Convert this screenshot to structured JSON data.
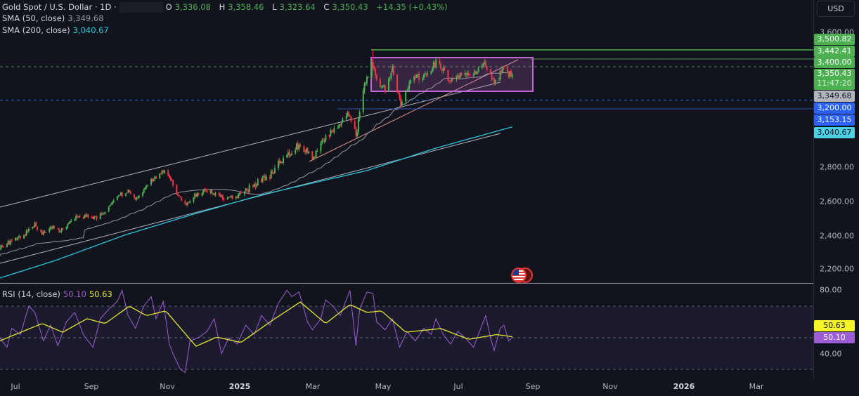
{
  "header": {
    "symbol": "Gold Spot / U.S. Dollar · 1D ·",
    "o_label": "O",
    "o": "3,336.08",
    "h_label": "H",
    "h": "3,358.46",
    "l_label": "L",
    "l": "3,323.64",
    "c_label": "C",
    "c": "3,350.43",
    "change": "+14.35 (+0.43%)"
  },
  "indicators": [
    {
      "label": "SMA (50, close)",
      "value": "3,349.68"
    },
    {
      "label": "SMA (200, close)",
      "value": "3,040.67"
    }
  ],
  "rsi_legend": {
    "label": "RSI (14, close)",
    "rsi": "50.10",
    "ma": "50.63"
  },
  "currency_button": "USD",
  "price_axis": {
    "ticks": [
      "3,600.00",
      "2,800.00",
      "2,600.00",
      "2,400.00",
      "2,200.00"
    ]
  },
  "price_tags": [
    {
      "value": "3,500.82",
      "kind": "horizontal-line",
      "color": "#4caf50"
    },
    {
      "value": "3,442.41",
      "kind": "horizontal-line",
      "color": "#4caf50"
    },
    {
      "value": "3,400.00",
      "kind": "horizontal-line",
      "color": "#4caf50"
    },
    {
      "value": "3,350.43",
      "countdown": "11:47:20",
      "kind": "last-price",
      "color": "#4caf50"
    },
    {
      "value": "3,349.68",
      "kind": "sma50",
      "color": "#b2b5be"
    },
    {
      "value": "3,200.00",
      "kind": "horizontal-line",
      "color": "#2962ff"
    },
    {
      "value": "3,153.15",
      "kind": "horizontal-line",
      "color": "#2962ff"
    },
    {
      "value": "3,040.67",
      "kind": "sma200",
      "color": "#4dd0e1"
    }
  ],
  "rsi_axis": {
    "ticks": [
      "80.00",
      "40.00"
    ],
    "tags": [
      {
        "value": "50.63",
        "color": "#f5f52a"
      },
      {
        "value": "50.10",
        "color": "#9c5dd6"
      }
    ]
  },
  "time_axis": [
    {
      "label": "Jul",
      "bold": false
    },
    {
      "label": "Sep",
      "bold": false
    },
    {
      "label": "Nov",
      "bold": false
    },
    {
      "label": "2025",
      "bold": true
    },
    {
      "label": "Mar",
      "bold": false
    },
    {
      "label": "May",
      "bold": false
    },
    {
      "label": "Jul",
      "bold": false
    },
    {
      "label": "Sep",
      "bold": false
    },
    {
      "label": "Nov",
      "bold": false
    },
    {
      "label": "2026",
      "bold": true
    },
    {
      "label": "Mar",
      "bold": false
    }
  ],
  "colors": {
    "up": "#4caf50",
    "down": "#f23645",
    "sma50": "#9598a1",
    "sma200": "#26c6da",
    "rsi": "#9c5dd6",
    "rsi_ma": "#e4e82a",
    "range_box": "#c266d6",
    "background": "#11141c"
  },
  "event_icon": "us-flag-icon",
  "chart_data": {
    "type": "candlestick",
    "interval": "1D",
    "last_bar": {
      "open": 3336.08,
      "high": 3358.46,
      "low": 3323.64,
      "close": 3350.43
    },
    "price_ylim": [
      2150,
      3650
    ],
    "close_path": [
      [
        "2024-06-18",
        2330
      ],
      [
        "2024-07-06",
        2390
      ],
      [
        "2024-07-17",
        2460
      ],
      [
        "2024-07-23",
        2400
      ],
      [
        "2024-08-01",
        2445
      ],
      [
        "2024-08-09",
        2430
      ],
      [
        "2024-08-21",
        2510
      ],
      [
        "2024-09-07",
        2500
      ],
      [
        "2024-09-22",
        2620
      ],
      [
        "2024-10-01",
        2660
      ],
      [
        "2024-10-09",
        2610
      ],
      [
        "2024-10-21",
        2720
      ],
      [
        "2024-11-01",
        2780
      ],
      [
        "2024-11-09",
        2690
      ],
      [
        "2024-11-17",
        2565
      ],
      [
        "2024-11-28",
        2650
      ],
      [
        "2024-12-09",
        2660
      ],
      [
        "2024-12-21",
        2610
      ],
      [
        "2025-01-04",
        2640
      ],
      [
        "2025-01-16",
        2710
      ],
      [
        "2025-01-28",
        2760
      ],
      [
        "2025-02-08",
        2870
      ],
      [
        "2025-02-20",
        2935
      ],
      [
        "2025-03-03",
        2860
      ],
      [
        "2025-03-15",
        2985
      ],
      [
        "2025-03-27",
        3060
      ],
      [
        "2025-04-03",
        3120
      ],
      [
        "2025-04-08",
        2980
      ],
      [
        "2025-04-13",
        3220
      ],
      [
        "2025-04-17",
        3330
      ],
      [
        "2025-04-21",
        3420
      ],
      [
        "2025-04-24",
        3330
      ],
      [
        "2025-05-03",
        3260
      ],
      [
        "2025-05-08",
        3380
      ],
      [
        "2025-05-15",
        3180
      ],
      [
        "2025-05-23",
        3320
      ],
      [
        "2025-06-01",
        3340
      ],
      [
        "2025-06-07",
        3360
      ],
      [
        "2025-06-14",
        3430
      ],
      [
        "2025-06-24",
        3320
      ],
      [
        "2025-07-03",
        3340
      ],
      [
        "2025-07-13",
        3350
      ],
      [
        "2025-07-22",
        3420
      ],
      [
        "2025-08-01",
        3300
      ],
      [
        "2025-08-07",
        3390
      ],
      [
        "2025-08-12",
        3350
      ],
      [
        "2025-08-15",
        3350.43
      ]
    ],
    "sma200": [
      [
        "2024-06-18",
        2146
      ],
      [
        "2024-08-03",
        2250
      ],
      [
        "2024-09-29",
        2400
      ],
      [
        "2024-11-25",
        2524
      ],
      [
        "2025-01-21",
        2640
      ],
      [
        "2025-04-17",
        2782
      ],
      [
        "2025-06-13",
        2915
      ],
      [
        "2025-08-15",
        3040.67
      ]
    ],
    "rsi_ylim": [
      20,
      85
    ],
    "rsi_levels": [
      70,
      50,
      30
    ],
    "rsi": [
      [
        "2024-06-18",
        50
      ],
      [
        "2024-06-24",
        44
      ],
      [
        "2024-06-28",
        56
      ],
      [
        "2024-07-05",
        52
      ],
      [
        "2024-07-12",
        70
      ],
      [
        "2024-07-17",
        66
      ],
      [
        "2024-07-24",
        48
      ],
      [
        "2024-07-30",
        58
      ],
      [
        "2024-08-05",
        45
      ],
      [
        "2024-08-12",
        60
      ],
      [
        "2024-08-19",
        66
      ],
      [
        "2024-08-26",
        52
      ],
      [
        "2024-09-03",
        44
      ],
      [
        "2024-09-09",
        62
      ],
      [
        "2024-09-16",
        68
      ],
      [
        "2024-09-23",
        73
      ],
      [
        "2024-09-27",
        80
      ],
      [
        "2024-10-02",
        64
      ],
      [
        "2024-10-08",
        56
      ],
      [
        "2024-10-15",
        70
      ],
      [
        "2024-10-21",
        76
      ],
      [
        "2024-10-25",
        62
      ],
      [
        "2024-10-31",
        73
      ],
      [
        "2024-11-05",
        46
      ],
      [
        "2024-11-08",
        40
      ],
      [
        "2024-11-14",
        30
      ],
      [
        "2024-11-18",
        28
      ],
      [
        "2024-11-22",
        48
      ],
      [
        "2024-11-29",
        50
      ],
      [
        "2024-12-06",
        54
      ],
      [
        "2024-12-12",
        62
      ],
      [
        "2024-12-18",
        40
      ],
      [
        "2024-12-24",
        50
      ],
      [
        "2024-12-31",
        46
      ],
      [
        "2025-01-07",
        58
      ],
      [
        "2025-01-14",
        52
      ],
      [
        "2025-01-20",
        64
      ],
      [
        "2025-01-27",
        58
      ],
      [
        "2025-02-03",
        72
      ],
      [
        "2025-02-10",
        80
      ],
      [
        "2025-02-14",
        76
      ],
      [
        "2025-02-20",
        79
      ],
      [
        "2025-02-27",
        60
      ],
      [
        "2025-03-03",
        55
      ],
      [
        "2025-03-10",
        62
      ],
      [
        "2025-03-14",
        74
      ],
      [
        "2025-03-20",
        70
      ],
      [
        "2025-03-26",
        64
      ],
      [
        "2025-04-03",
        80
      ],
      [
        "2025-04-08",
        45
      ],
      [
        "2025-04-11",
        68
      ],
      [
        "2025-04-17",
        79
      ],
      [
        "2025-04-22",
        78
      ],
      [
        "2025-04-25",
        60
      ],
      [
        "2025-05-02",
        55
      ],
      [
        "2025-05-08",
        62
      ],
      [
        "2025-05-14",
        44
      ],
      [
        "2025-05-20",
        54
      ],
      [
        "2025-05-27",
        48
      ],
      [
        "2025-06-03",
        56
      ],
      [
        "2025-06-09",
        52
      ],
      [
        "2025-06-13",
        62
      ],
      [
        "2025-06-19",
        52
      ],
      [
        "2025-06-25",
        46
      ],
      [
        "2025-07-01",
        54
      ],
      [
        "2025-07-07",
        50
      ],
      [
        "2025-07-14",
        44
      ],
      [
        "2025-07-21",
        58
      ],
      [
        "2025-07-24",
        64
      ],
      [
        "2025-07-28",
        50
      ],
      [
        "2025-07-31",
        42
      ],
      [
        "2025-08-05",
        56
      ],
      [
        "2025-08-08",
        58
      ],
      [
        "2025-08-12",
        48
      ],
      [
        "2025-08-15",
        50.1
      ]
    ],
    "rsi_ma": [
      [
        "2024-06-18",
        48
      ],
      [
        "2024-07-23",
        59
      ],
      [
        "2024-08-09",
        53.5
      ],
      [
        "2024-08-29",
        62
      ],
      [
        "2024-09-13",
        59
      ],
      [
        "2024-10-03",
        70
      ],
      [
        "2024-10-17",
        64
      ],
      [
        "2024-11-02",
        67
      ],
      [
        "2024-11-27",
        44.6
      ],
      [
        "2024-12-14",
        50.4
      ],
      [
        "2025-01-03",
        47
      ],
      [
        "2025-01-29",
        61
      ],
      [
        "2025-02-21",
        72.6
      ],
      [
        "2025-03-14",
        59
      ],
      [
        "2025-04-03",
        71
      ],
      [
        "2025-04-17",
        66
      ],
      [
        "2025-04-29",
        67
      ],
      [
        "2025-05-19",
        53.5
      ],
      [
        "2025-06-17",
        55.8
      ],
      [
        "2025-07-10",
        49
      ],
      [
        "2025-08-02",
        52
      ],
      [
        "2025-08-15",
        50.63
      ]
    ]
  }
}
